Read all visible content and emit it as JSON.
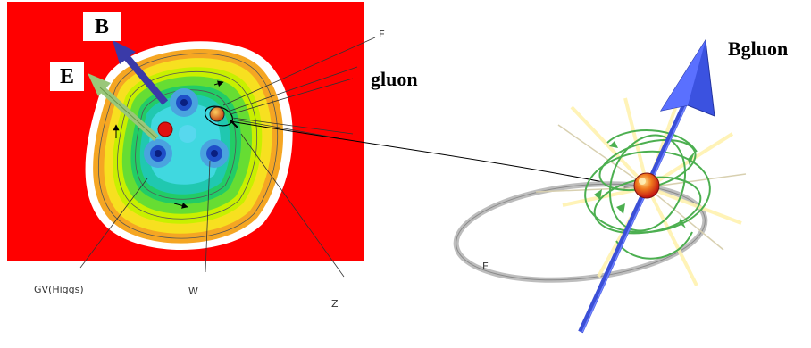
{
  "labels": {
    "b_field": "B",
    "e_field": "E",
    "gluon": "gluon",
    "bgluon": "Bgluon",
    "e_top": "E",
    "gv_higgs": "GV(Higgs)",
    "w": "W",
    "z": "Z",
    "e_ring": "E"
  },
  "colors": {
    "background_red": "#ff0000",
    "b_arrow": "#3a3aa8",
    "e_arrow": "#9ac77a",
    "spin_axis": "#3b4fd6",
    "field_lines": "#4caf50",
    "particle": "#e05a1a"
  }
}
